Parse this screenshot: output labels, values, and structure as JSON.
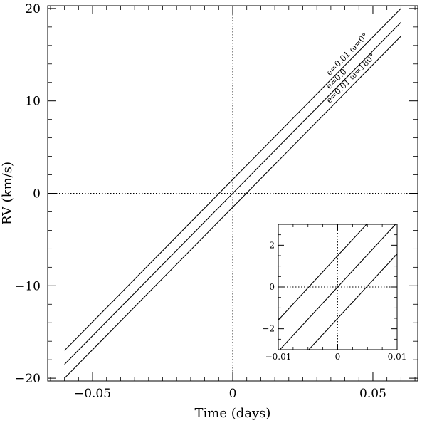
{
  "chart_data": {
    "type": "line",
    "title": "",
    "xlabel": "Time (days)",
    "ylabel": "RV (km/s)",
    "xlim": [
      -0.066,
      0.066
    ],
    "ylim": [
      -20.3,
      20.3
    ],
    "xticks": [
      -0.05,
      0,
      0.05
    ],
    "xtick_labels": [
      "−0.05",
      "0",
      "0.05"
    ],
    "yticks": [
      -20,
      -10,
      0,
      10,
      20
    ],
    "ytick_labels": [
      "−20",
      "−10",
      "0",
      "10",
      "20"
    ],
    "reference_lines": {
      "x": 0,
      "y": 0,
      "style": "dotted"
    },
    "grid": false,
    "series": [
      {
        "name": "e=0.01  ω=0°",
        "x": [
          -0.06,
          0.06
        ],
        "y": [
          -17.0,
          20.0
        ]
      },
      {
        "name": "e=0.0",
        "x": [
          -0.06,
          0.06
        ],
        "y": [
          -18.5,
          18.5
        ]
      },
      {
        "name": "e=0.01  ω=180°",
        "x": [
          -0.06,
          0.06
        ],
        "y": [
          -20.0,
          17.0
        ]
      }
    ],
    "inset": {
      "xlim": [
        -0.01,
        0.01
      ],
      "ylim": [
        -3.0,
        3.0
      ],
      "xticks": [
        -0.01,
        0,
        0.01
      ],
      "xtick_labels": [
        "−0.01",
        "0",
        "0.01"
      ],
      "yticks": [
        -2,
        0,
        2
      ],
      "ytick_labels": [
        "−2",
        "0",
        "2"
      ],
      "reference_lines": {
        "x": 0,
        "y": 0,
        "style": "dotted"
      }
    }
  }
}
